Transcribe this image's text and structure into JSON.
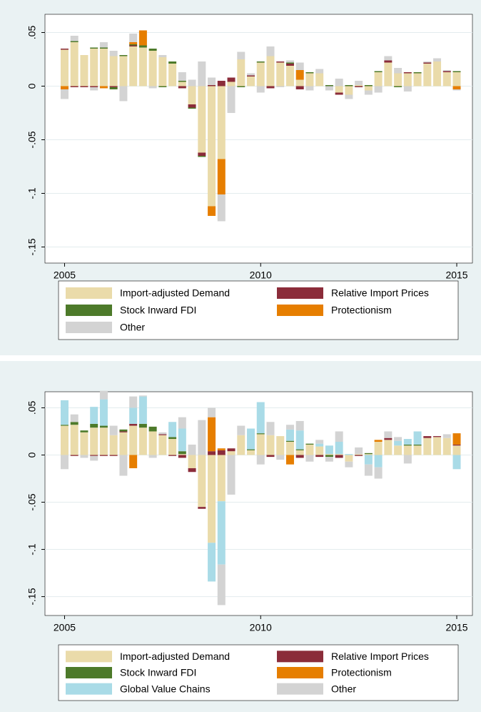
{
  "chart_data": [
    {
      "type": "bar",
      "stacked": true,
      "x": [
        2005,
        2005.25,
        2005.5,
        2005.75,
        2006,
        2006.25,
        2006.5,
        2006.75,
        2007,
        2007.25,
        2007.5,
        2007.75,
        2008,
        2008.25,
        2008.5,
        2008.75,
        2009,
        2009.25,
        2009.5,
        2009.75,
        2010,
        2010.25,
        2010.5,
        2010.75,
        2011,
        2011.25,
        2011.5,
        2011.75,
        2012,
        2012.25,
        2012.5,
        2012.75,
        2013,
        2013.25,
        2013.5,
        2013.75,
        2014,
        2014.25,
        2014.5,
        2014.75,
        2015
      ],
      "xlim": [
        2004.5,
        2015.4
      ],
      "xticks": [
        2005,
        2010,
        2015
      ],
      "ylim": [
        -0.165,
        0.067
      ],
      "yticks": [
        {
          "value": 0.05,
          "label": ".05"
        },
        0,
        {
          "value": -0.05,
          "label": "-.05"
        },
        {
          "value": -0.1,
          "label": "-.1"
        },
        {
          "value": -0.15,
          "label": "-.15"
        }
      ],
      "grid": true,
      "series": [
        {
          "name": "Import-adjusted Demand",
          "color": "#eadbaa",
          "values": [
            0.034,
            0.041,
            0.029,
            0.035,
            0.035,
            0.028,
            0.028,
            0.037,
            0.036,
            0.033,
            0.027,
            0.021,
            0.004,
            -0.017,
            -0.062,
            -0.112,
            -0.068,
            0.004,
            0.025,
            0.009,
            0.022,
            0.028,
            0.022,
            0.019,
            0.006,
            0.012,
            0.012,
            0,
            -0.006,
            -0.008,
            0.001,
            -0.004,
            0.013,
            0.022,
            0.012,
            0.012,
            0.012,
            0.021,
            0.023,
            0.013,
            0.013
          ]
        },
        {
          "name": "Relative Import Prices",
          "color": "#8b2c3a",
          "values": [
            0.001,
            -0.001,
            -0.001,
            -0.001,
            0,
            -0.001,
            0,
            0.001,
            0,
            0,
            0,
            0,
            -0.002,
            -0.003,
            -0.003,
            0.001,
            0.005,
            0.004,
            0,
            0.001,
            0,
            -0.002,
            0.001,
            0.002,
            -0.003,
            0,
            0,
            0,
            -0.002,
            0,
            -0.001,
            0,
            0,
            0.002,
            0,
            0.001,
            0,
            0.001,
            0,
            0.001,
            0
          ]
        },
        {
          "name": "Stock Inward FDI",
          "color": "#4d7a2a",
          "values": [
            0,
            0.001,
            0,
            0.001,
            0.001,
            -0.002,
            0.001,
            0.001,
            0.002,
            0.002,
            -0.001,
            0.002,
            0.001,
            -0.001,
            -0.001,
            0,
            0,
            0,
            -0.001,
            0,
            0.001,
            0,
            0,
            0.001,
            0,
            0.001,
            0,
            0.001,
            0,
            0.001,
            0,
            0.001,
            0.001,
            0,
            -0.001,
            0,
            0.001,
            0,
            0,
            0,
            0.001
          ]
        },
        {
          "name": "Protectionism",
          "color": "#e67e00",
          "values": [
            -0.003,
            0,
            0,
            0,
            -0.002,
            0,
            0,
            0.002,
            0.014,
            0,
            0,
            0,
            0,
            0,
            0,
            -0.009,
            -0.033,
            0,
            0,
            0,
            0,
            0,
            0,
            0,
            0.009,
            0,
            0,
            0,
            0,
            0,
            0,
            0,
            0,
            0,
            0,
            0,
            0,
            0,
            0,
            0,
            -0.003
          ]
        },
        {
          "name": "Other",
          "color": "#d3d3d3",
          "values": [
            -0.009,
            0.005,
            0,
            -0.003,
            0.005,
            0.005,
            -0.014,
            0.008,
            0,
            -0.002,
            0.002,
            0,
            0.008,
            0.006,
            0.023,
            0.007,
            -0.025,
            -0.025,
            0.007,
            0.002,
            -0.006,
            0.009,
            -0.001,
            0.002,
            0.007,
            -0.004,
            0.004,
            -0.004,
            0.007,
            -0.004,
            0.004,
            -0.004,
            -0.006,
            0.004,
            0.005,
            -0.005,
            0,
            0.001,
            0.003,
            0.001,
            -0.001
          ]
        }
      ]
    },
    {
      "type": "bar",
      "stacked": true,
      "x": [
        2005,
        2005.25,
        2005.5,
        2005.75,
        2006,
        2006.25,
        2006.5,
        2006.75,
        2007,
        2007.25,
        2007.5,
        2007.75,
        2008,
        2008.25,
        2008.5,
        2008.75,
        2009,
        2009.25,
        2009.5,
        2009.75,
        2010,
        2010.25,
        2010.5,
        2010.75,
        2011,
        2011.25,
        2011.5,
        2011.75,
        2012,
        2012.25,
        2012.5,
        2012.75,
        2013,
        2013.25,
        2013.5,
        2013.75,
        2014,
        2014.25,
        2014.5,
        2014.75,
        2015
      ],
      "xlim": [
        2004.5,
        2015.4
      ],
      "xticks": [
        2005,
        2010,
        2015
      ],
      "ylim": [
        -0.17,
        0.067
      ],
      "yticks": [
        {
          "value": 0.05,
          "label": ".05"
        },
        0,
        {
          "value": -0.05,
          "label": "-.05"
        },
        {
          "value": -0.1,
          "label": "-.1"
        },
        {
          "value": -0.15,
          "label": "-.15"
        }
      ],
      "grid": true,
      "series": [
        {
          "name": "Import-adjusted Demand",
          "color": "#eadbaa",
          "values": [
            0.031,
            0.032,
            0.024,
            0.029,
            0.029,
            0.021,
            0.024,
            0.031,
            0.029,
            0.025,
            0.021,
            0.017,
            0.001,
            -0.014,
            -0.055,
            -0.093,
            -0.049,
            0.004,
            0.021,
            0.005,
            0.022,
            0.021,
            0.02,
            0.014,
            0.005,
            0.011,
            0.009,
            0.001,
            0.001,
            -0.007,
            0.001,
            0.001,
            0.014,
            0.016,
            0.01,
            0.01,
            0.01,
            0.018,
            0.019,
            0.018,
            0.01
          ]
        },
        {
          "name": "Relative Import Prices",
          "color": "#8b2c3a",
          "values": [
            0,
            -0.001,
            0,
            -0.001,
            -0.001,
            -0.001,
            0.001,
            0.002,
            0,
            0,
            0.001,
            -0.001,
            -0.003,
            -0.004,
            -0.002,
            0.004,
            0.005,
            0.003,
            0,
            0,
            0,
            -0.002,
            0,
            0,
            -0.003,
            0,
            -0.002,
            0,
            -0.003,
            0,
            -0.001,
            0,
            0,
            0.002,
            0,
            0,
            0,
            0.002,
            0.001,
            0,
            0.001
          ]
        },
        {
          "name": "Stock Inward FDI",
          "color": "#4d7a2a",
          "values": [
            0.001,
            0.003,
            0.002,
            0.004,
            0.002,
            0,
            0.002,
            0,
            0.004,
            0.005,
            0,
            0.002,
            0.003,
            0,
            0,
            0,
            0,
            0,
            0,
            0.001,
            0.001,
            0,
            0,
            0.001,
            0.001,
            0.001,
            0,
            -0.002,
            0,
            0,
            0,
            0.001,
            0,
            0,
            0,
            0.001,
            0.001,
            0,
            0,
            0,
            0
          ]
        },
        {
          "name": "Protectionism",
          "color": "#e67e00",
          "values": [
            0,
            0,
            0,
            0,
            0,
            0,
            0,
            -0.014,
            0,
            0,
            0,
            0,
            0,
            0,
            0,
            0.036,
            0.002,
            0,
            0,
            0,
            0,
            0,
            0,
            -0.01,
            0,
            0,
            0,
            0,
            0,
            0,
            0,
            0,
            0.002,
            0,
            0,
            0,
            0,
            0,
            0,
            0,
            0.012
          ]
        },
        {
          "name": "Global Value Chains",
          "color": "#a9dbe7",
          "values": [
            0.026,
            0,
            0,
            0.018,
            0.028,
            0,
            0,
            0.017,
            0.029,
            0,
            0,
            0.016,
            0.024,
            0,
            0,
            -0.041,
            -0.067,
            0,
            0,
            0.022,
            0.033,
            0,
            0,
            0.012,
            0.02,
            0,
            0.003,
            0.009,
            0.013,
            0.001,
            0,
            -0.01,
            -0.013,
            0,
            0.005,
            0.006,
            0.014,
            0,
            0,
            0,
            -0.015
          ]
        },
        {
          "name": "Other",
          "color": "#d3d3d3",
          "values": [
            -0.015,
            0.008,
            -0.003,
            -0.005,
            0.009,
            0.01,
            -0.022,
            0.012,
            0.001,
            -0.003,
            0.002,
            0,
            0.012,
            0.011,
            0.037,
            0.01,
            -0.043,
            -0.042,
            0.01,
            0,
            -0.01,
            0.014,
            -0.005,
            0.005,
            0.01,
            -0.007,
            0.004,
            -0.005,
            0.011,
            -0.006,
            0.007,
            -0.012,
            -0.012,
            0.007,
            0.004,
            -0.009,
            0,
            0,
            0,
            0.004,
            0
          ]
        }
      ]
    }
  ]
}
